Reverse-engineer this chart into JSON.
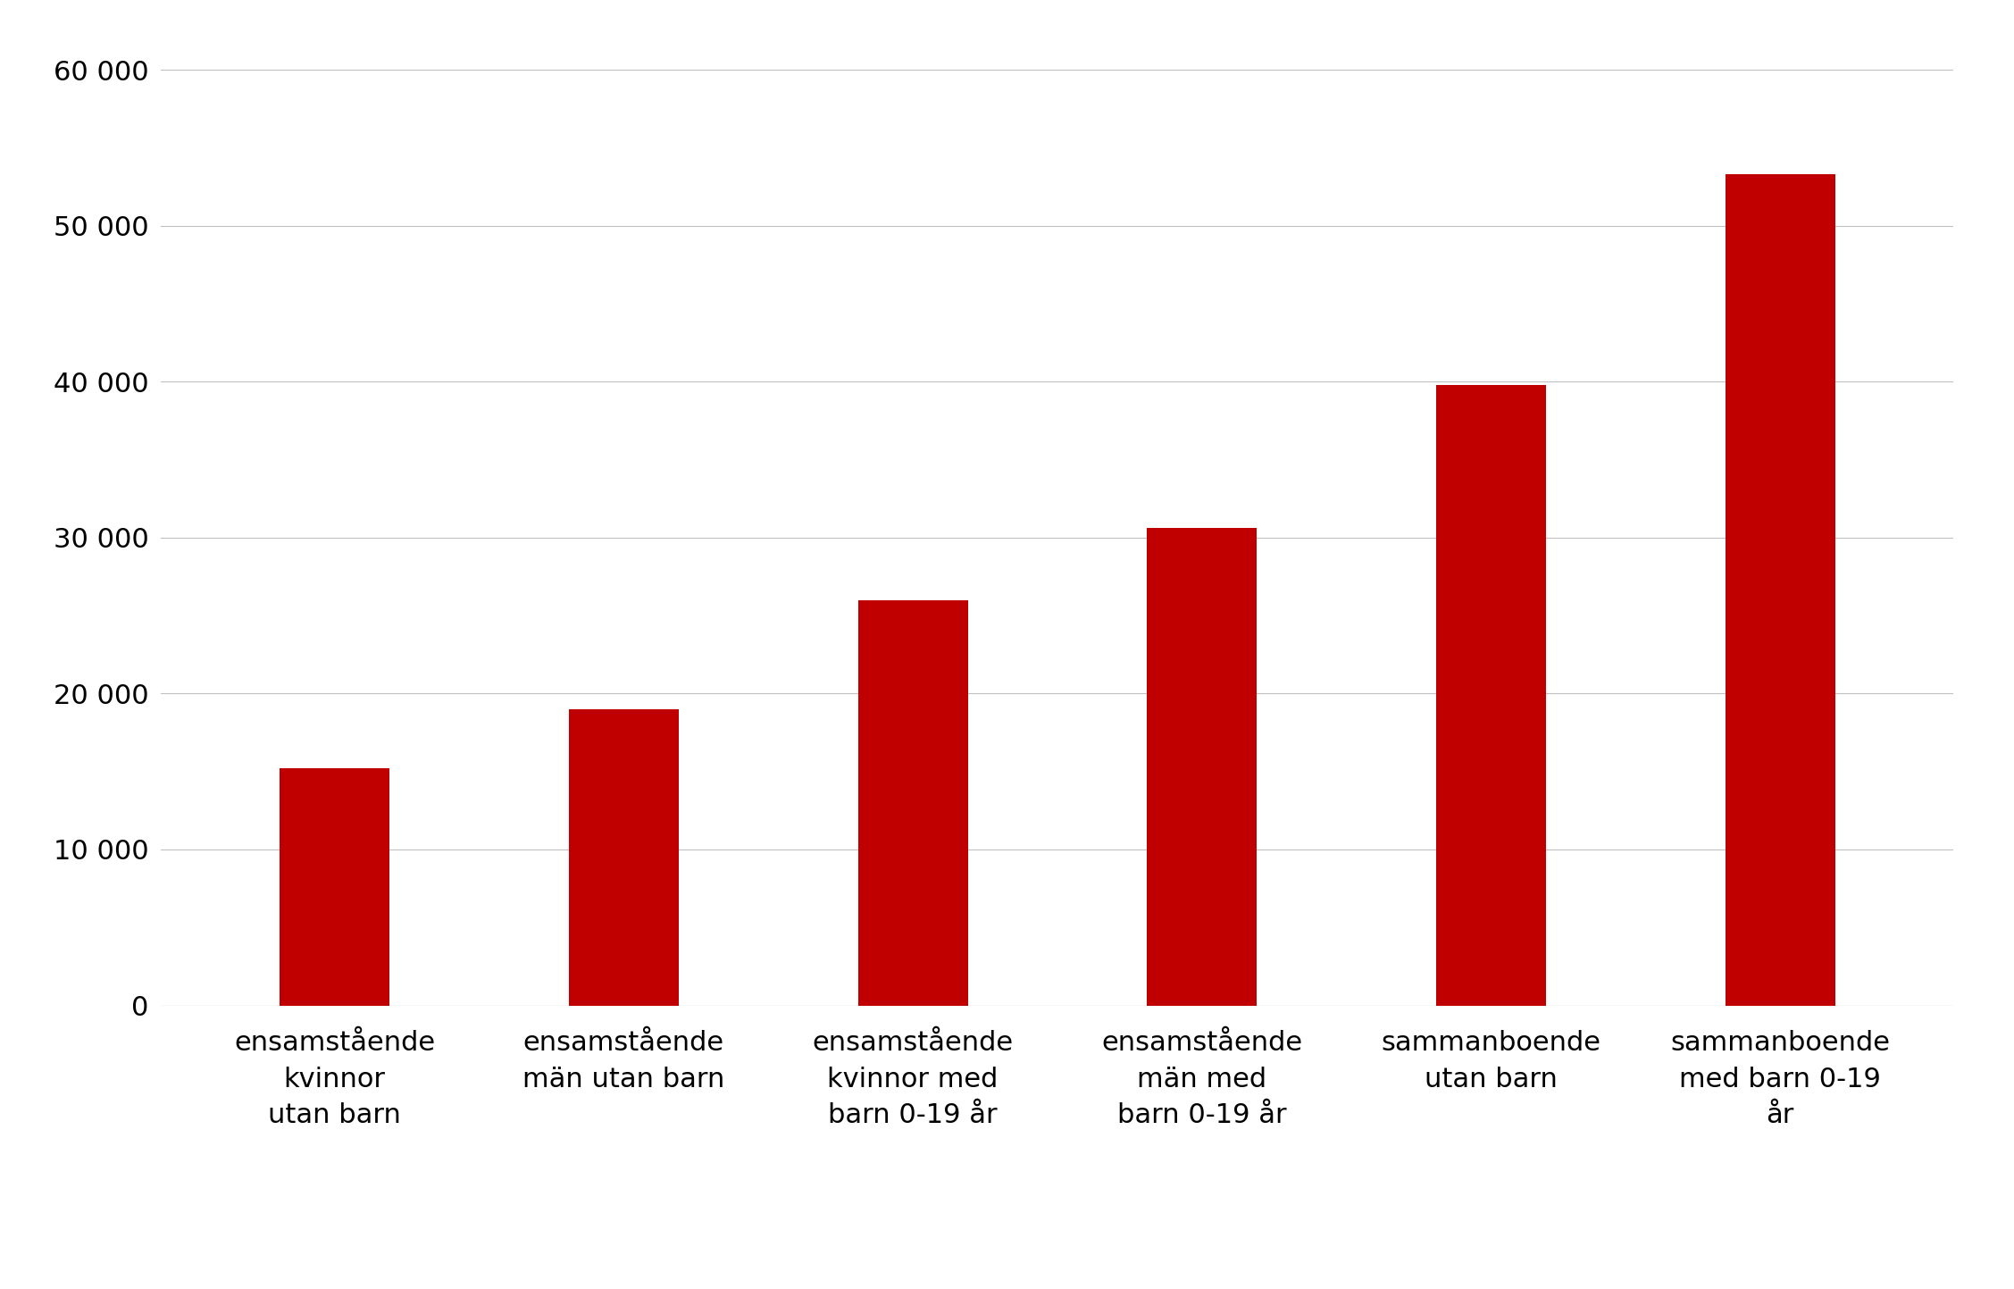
{
  "categories": [
    "ensamstående\nkvinnor\nutan barn",
    "ensamstående\nmän utan barn",
    "ensamstående\nkvinnor med\nbarn 0-19 år",
    "ensamstående\nmän med\nbarn 0-19 år",
    "sammanboende\nutan barn",
    "sammanboende\nmed barn 0-19\når"
  ],
  "values": [
    15200,
    19000,
    26000,
    30600,
    39800,
    53300
  ],
  "bar_color": "#C00000",
  "ylim": [
    0,
    62000
  ],
  "yticks": [
    0,
    10000,
    20000,
    30000,
    40000,
    50000,
    60000
  ],
  "ytick_labels": [
    "0",
    "10 000",
    "20 000",
    "30 000",
    "40 000",
    "50 000",
    "60 000"
  ],
  "background_color": "#ffffff",
  "grid_color": "#c0c0c0",
  "tick_label_fontsize": 22,
  "xlabel_fontsize": 22,
  "bar_width": 0.38
}
